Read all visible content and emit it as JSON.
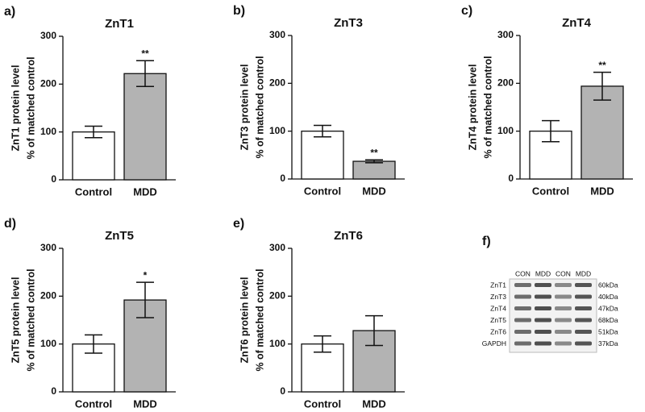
{
  "chart_data": [
    {
      "type": "bar",
      "panel": "a)",
      "title": "ZnT1",
      "y_label": [
        "ZnT1 protein level",
        "% of matched control"
      ],
      "categories": [
        "Control",
        "MDD"
      ],
      "values": [
        100,
        222
      ],
      "errors": [
        12,
        27
      ],
      "annotations": [
        null,
        "**"
      ],
      "colors": [
        "#ffffff",
        "#b3b3b3"
      ],
      "ylim": [
        0,
        300
      ],
      "yticks": [
        0,
        100,
        200,
        300
      ]
    },
    {
      "type": "bar",
      "panel": "b)",
      "title": "ZnT3",
      "y_label": [
        "ZnT3 protein level",
        "% of matched control"
      ],
      "categories": [
        "Control",
        "MDD"
      ],
      "values": [
        100,
        37
      ],
      "errors": [
        12,
        3
      ],
      "annotations": [
        null,
        "**"
      ],
      "colors": [
        "#ffffff",
        "#b3b3b3"
      ],
      "ylim": [
        0,
        300
      ],
      "yticks": [
        0,
        100,
        200,
        300
      ]
    },
    {
      "type": "bar",
      "panel": "c)",
      "title": "ZnT4",
      "y_label": [
        "ZnT4 protein level",
        "% of matched control"
      ],
      "categories": [
        "Control",
        "MDD"
      ],
      "values": [
        100,
        194
      ],
      "errors": [
        22,
        29
      ],
      "annotations": [
        null,
        "**"
      ],
      "colors": [
        "#ffffff",
        "#b3b3b3"
      ],
      "ylim": [
        0,
        300
      ],
      "yticks": [
        0,
        100,
        200,
        300
      ]
    },
    {
      "type": "bar",
      "panel": "d)",
      "title": "ZnT5",
      "y_label": [
        "ZnT5 protein level",
        "% of matched control"
      ],
      "categories": [
        "Control",
        "MDD"
      ],
      "values": [
        100,
        192
      ],
      "errors": [
        19,
        37
      ],
      "annotations": [
        null,
        "*"
      ],
      "colors": [
        "#ffffff",
        "#b3b3b3"
      ],
      "ylim": [
        0,
        300
      ],
      "yticks": [
        0,
        100,
        200,
        300
      ]
    },
    {
      "type": "bar",
      "panel": "e)",
      "title": "ZnT6",
      "y_label": [
        "ZnT6 protein level",
        "% of matched control"
      ],
      "categories": [
        "Control",
        "MDD"
      ],
      "values": [
        100,
        128
      ],
      "errors": [
        17,
        31
      ],
      "annotations": [
        null,
        null
      ],
      "colors": [
        "#ffffff",
        "#b3b3b3"
      ],
      "ylim": [
        0,
        300
      ],
      "yticks": [
        0,
        100,
        200,
        300
      ]
    }
  ],
  "blot": {
    "panel": "f)",
    "lanes": [
      "CON",
      "MDD",
      "CON",
      "MDD"
    ],
    "rows": [
      {
        "name": "ZnT1",
        "size": "60kDa"
      },
      {
        "name": "ZnT3",
        "size": "40kDa"
      },
      {
        "name": "ZnT4",
        "size": "47kDa"
      },
      {
        "name": "ZnT5",
        "size": "68kDa"
      },
      {
        "name": "ZnT6",
        "size": "51kDa"
      },
      {
        "name": "GAPDH",
        "size": "37kDa"
      }
    ]
  }
}
